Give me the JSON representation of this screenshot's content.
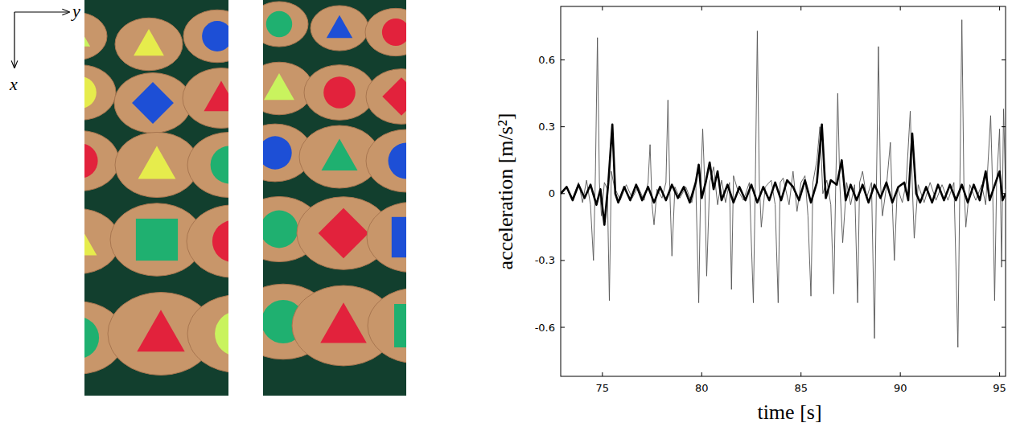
{
  "photo_axes": {
    "right": "y",
    "down": "x"
  },
  "chart_data": {
    "type": "line",
    "xlabel": "time [s]",
    "ylabel": "acceleration [m/s²]",
    "xlim": [
      72.9,
      95.3
    ],
    "ylim": [
      -0.82,
      0.84
    ],
    "xticks": [
      75,
      80,
      85,
      90,
      95
    ],
    "yticks": [
      -0.6,
      -0.3,
      0,
      0.3,
      0.6
    ],
    "grid": false,
    "series": [
      {
        "color": "#555555",
        "line_style": "thin",
        "x": [
          72.9,
          73.2,
          73.5,
          73.8,
          74.0,
          74.2,
          74.4,
          74.55,
          74.65,
          74.75,
          74.85,
          74.95,
          75.1,
          75.25,
          75.35,
          75.45,
          75.6,
          75.9,
          76.2,
          76.5,
          76.8,
          77.1,
          77.3,
          77.4,
          77.5,
          77.6,
          77.75,
          78.0,
          78.2,
          78.3,
          78.4,
          78.5,
          78.65,
          78.9,
          79.2,
          79.5,
          79.7,
          79.85,
          79.95,
          80.05,
          80.15,
          80.25,
          80.4,
          80.6,
          80.8,
          81.0,
          81.2,
          81.4,
          81.5,
          81.6,
          81.8,
          82.1,
          82.4,
          82.6,
          82.7,
          82.8,
          82.9,
          83.0,
          83.2,
          83.5,
          83.7,
          83.85,
          83.95,
          84.1,
          84.4,
          84.6,
          84.8,
          85.0,
          85.2,
          85.35,
          85.5,
          85.6,
          85.8,
          85.95,
          86.1,
          86.3,
          86.5,
          86.65,
          86.75,
          86.85,
          86.95,
          87.1,
          87.3,
          87.5,
          87.7,
          87.85,
          87.95,
          88.1,
          88.3,
          88.55,
          88.7,
          88.8,
          88.9,
          89.0,
          89.1,
          89.3,
          89.5,
          89.6,
          89.7,
          89.85,
          90.1,
          90.3,
          90.5,
          90.6,
          90.7,
          90.9,
          91.2,
          91.5,
          91.8,
          92.1,
          92.4,
          92.7,
          92.9,
          93.0,
          93.1,
          93.2,
          93.3,
          93.5,
          93.8,
          94.1,
          94.3,
          94.55,
          94.65,
          94.75,
          94.85,
          95.0,
          95.1,
          95.2,
          95.3
        ],
        "values": [
          0,
          0.03,
          -0.02,
          0.05,
          -0.04,
          0.06,
          -0.05,
          -0.3,
          0.1,
          0.7,
          0.05,
          -0.1,
          0.05,
          0.02,
          -0.48,
          0.1,
          0.03,
          -0.03,
          0.04,
          -0.02,
          0.03,
          -0.03,
          0.05,
          0.22,
          -0.05,
          -0.14,
          0.02,
          -0.02,
          0.05,
          0.42,
          0.0,
          -0.28,
          0.03,
          -0.02,
          0.03,
          -0.04,
          0.05,
          -0.49,
          0.05,
          0.29,
          0.05,
          -0.37,
          0.05,
          0.12,
          -0.05,
          0.06,
          -0.04,
          0.05,
          -0.43,
          0.08,
          0.02,
          -0.03,
          0.05,
          -0.49,
          0.05,
          0.73,
          0.05,
          -0.15,
          0.03,
          0.06,
          -0.05,
          -0.49,
          0.05,
          0.07,
          -0.05,
          0.1,
          -0.08,
          0.05,
          0.08,
          -0.1,
          -0.46,
          0.05,
          0.15,
          0.3,
          0.0,
          0.06,
          -0.05,
          -0.45,
          0.05,
          0.45,
          0.05,
          -0.22,
          0.05,
          -0.05,
          0.04,
          -0.49,
          0.05,
          0.1,
          -0.02,
          0.05,
          -0.65,
          0.05,
          0.66,
          0.05,
          -0.1,
          0.03,
          0.23,
          -0.05,
          -0.3,
          0.03,
          -0.04,
          0.05,
          0.37,
          0.05,
          -0.2,
          0.04,
          -0.04,
          0.05,
          -0.03,
          0.04,
          -0.03,
          0.05,
          -0.69,
          0.05,
          0.78,
          0.05,
          -0.15,
          0.04,
          -0.03,
          0.04,
          -0.05,
          0.35,
          0.02,
          -0.48,
          0.05,
          0.29,
          -0.33,
          0.38,
          0.02
        ]
      },
      {
        "color": "#000000",
        "line_style": "thick",
        "x": [
          72.9,
          73.2,
          73.5,
          73.8,
          74.1,
          74.4,
          74.7,
          74.9,
          75.1,
          75.3,
          75.5,
          75.65,
          75.8,
          76.1,
          76.4,
          76.7,
          77.0,
          77.3,
          77.6,
          77.9,
          78.2,
          78.5,
          78.8,
          79.1,
          79.4,
          79.7,
          79.85,
          80.0,
          80.2,
          80.4,
          80.6,
          80.8,
          81.0,
          81.3,
          81.6,
          81.9,
          82.2,
          82.5,
          82.8,
          83.1,
          83.4,
          83.7,
          84.0,
          84.3,
          84.6,
          84.9,
          85.2,
          85.5,
          85.8,
          86.05,
          86.25,
          86.5,
          86.8,
          87.05,
          87.25,
          87.5,
          87.8,
          88.1,
          88.4,
          88.7,
          89.0,
          89.3,
          89.6,
          89.9,
          90.2,
          90.4,
          90.6,
          90.8,
          91.0,
          91.3,
          91.6,
          91.9,
          92.2,
          92.5,
          92.8,
          93.1,
          93.4,
          93.7,
          94.0,
          94.3,
          94.5,
          94.8,
          95.0,
          95.15,
          95.3
        ],
        "values": [
          0,
          0.03,
          -0.03,
          0.04,
          -0.02,
          0.04,
          -0.05,
          0.02,
          -0.14,
          0.05,
          0.31,
          0.0,
          -0.04,
          0.03,
          -0.03,
          0.04,
          -0.03,
          0.03,
          -0.04,
          0.03,
          -0.03,
          0.04,
          -0.02,
          0.03,
          -0.04,
          0.05,
          0.13,
          -0.02,
          0.05,
          0.14,
          0.02,
          0.1,
          -0.03,
          0.04,
          -0.04,
          0.03,
          -0.03,
          0.04,
          -0.04,
          0.03,
          -0.03,
          0.05,
          -0.03,
          0.06,
          0.03,
          -0.03,
          0.06,
          -0.04,
          0.05,
          0.31,
          -0.02,
          0.06,
          0.04,
          0.15,
          -0.03,
          0.04,
          -0.03,
          0.04,
          -0.04,
          0.04,
          -0.02,
          0.05,
          -0.04,
          0.03,
          0.05,
          -0.03,
          0.27,
          0.0,
          -0.04,
          0.03,
          -0.04,
          0.04,
          -0.03,
          0.04,
          -0.03,
          0.04,
          -0.04,
          0.04,
          -0.03,
          0.1,
          -0.03,
          0.05,
          0.1,
          -0.03,
          0.0
        ]
      }
    ]
  }
}
